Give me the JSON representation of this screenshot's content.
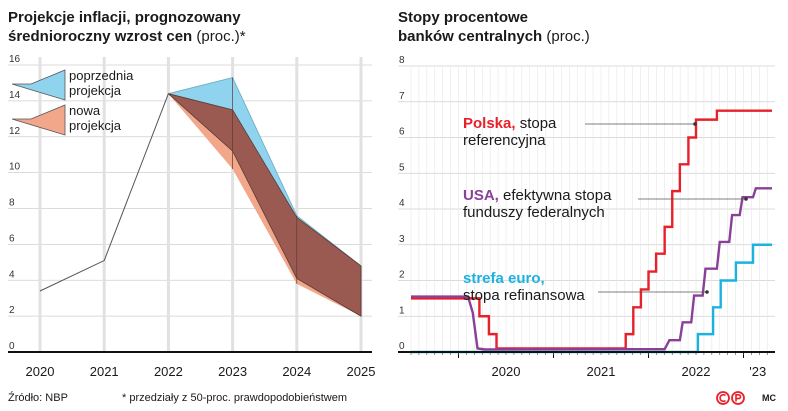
{
  "left_title_line1": "Projekcje inflacji, prognozowany",
  "left_title_line2_bold": "średnioroczny wzrost cen",
  "left_title_unit": "(proc.)*",
  "right_title_line1": "Stopy procentowe",
  "right_title_line2_bold": "banków centralnych",
  "right_title_unit": "(proc.)",
  "source": "Źródło: NBP",
  "footnote": "* przedziały z 50-proc. prawdopodobieństwem",
  "credit": "MC",
  "colors": {
    "prev": "#8fd3ee",
    "new_fill": "#9a5a52",
    "new_band": "#f2a78b",
    "history": "#555555",
    "pl": "#e8202a",
    "usa": "#8a3f98",
    "euro": "#1cb2e0"
  },
  "chart_data": [
    {
      "type": "area",
      "x_labels": [
        "2020",
        "2021",
        "2022",
        "2023",
        "2024",
        "2025"
      ],
      "y_ticks": [
        "0",
        "2",
        "4",
        "6",
        "8",
        "10",
        "12",
        "14",
        "16"
      ],
      "ylim": [
        0,
        16
      ],
      "grid": true,
      "legend": [
        {
          "label_line1": "poprzednia",
          "label_line2": "projekcja"
        },
        {
          "label_line1": "nowa",
          "label_line2": "projekcja"
        }
      ],
      "history": {
        "x": [
          2020,
          2021,
          2022
        ],
        "y": [
          3.4,
          5.1,
          14.4
        ]
      },
      "series": [
        {
          "name": "poprzednia projekcja",
          "x": [
            2022,
            2023,
            2024,
            2025
          ],
          "upper": [
            14.4,
            15.3,
            7.6,
            4.8
          ],
          "lower": [
            14.4,
            11.2,
            4.1,
            2.0
          ]
        },
        {
          "name": "nowa projekcja",
          "x": [
            2022,
            2023,
            2024,
            2025
          ],
          "upper": [
            14.4,
            13.5,
            7.5,
            4.8
          ],
          "lower": [
            14.4,
            10.2,
            3.8,
            2.0
          ]
        }
      ]
    },
    {
      "type": "line",
      "x_labels": [
        "2020",
        "2021",
        "2022",
        "'23"
      ],
      "y_ticks": [
        "0",
        "1",
        "2",
        "3",
        "4",
        "5",
        "6",
        "7",
        "8"
      ],
      "ylim": [
        0,
        8
      ],
      "grid": true,
      "labels": [
        {
          "bold": "Polska,",
          "line1_rest": " stopa",
          "line2": "referencyjna"
        },
        {
          "bold": "USA,",
          "line1_rest": " efektywna stopa",
          "line2": "funduszy federalnych"
        },
        {
          "bold": "strefa euro,",
          "line1_rest": "",
          "line2": "stopa refinansowa"
        }
      ],
      "series": [
        {
          "name": "Polska",
          "points": [
            [
              2019.5,
              1.5
            ],
            [
              2020.22,
              1.5
            ],
            [
              2020.22,
              1.0
            ],
            [
              2020.32,
              1.0
            ],
            [
              2020.32,
              0.5
            ],
            [
              2020.4,
              0.5
            ],
            [
              2020.4,
              0.1
            ],
            [
              2021.76,
              0.1
            ],
            [
              2021.76,
              0.5
            ],
            [
              2021.84,
              0.5
            ],
            [
              2021.84,
              1.25
            ],
            [
              2021.92,
              1.25
            ],
            [
              2021.92,
              1.75
            ],
            [
              2022.0,
              1.75
            ],
            [
              2022.0,
              2.25
            ],
            [
              2022.08,
              2.25
            ],
            [
              2022.08,
              2.75
            ],
            [
              2022.17,
              2.75
            ],
            [
              2022.17,
              3.5
            ],
            [
              2022.25,
              3.5
            ],
            [
              2022.25,
              4.5
            ],
            [
              2022.33,
              4.5
            ],
            [
              2022.33,
              5.25
            ],
            [
              2022.42,
              5.25
            ],
            [
              2022.42,
              6.0
            ],
            [
              2022.5,
              6.0
            ],
            [
              2022.5,
              6.5
            ],
            [
              2022.72,
              6.5
            ],
            [
              2022.72,
              6.75
            ],
            [
              2023.3,
              6.75
            ]
          ]
        },
        {
          "name": "USA",
          "points": [
            [
              2019.5,
              1.55
            ],
            [
              2020.1,
              1.55
            ],
            [
              2020.15,
              1.1
            ],
            [
              2020.2,
              0.1
            ],
            [
              2020.28,
              0.07
            ],
            [
              2022.17,
              0.08
            ],
            [
              2022.22,
              0.33
            ],
            [
              2022.33,
              0.33
            ],
            [
              2022.36,
              0.83
            ],
            [
              2022.45,
              0.83
            ],
            [
              2022.48,
              1.58
            ],
            [
              2022.57,
              1.58
            ],
            [
              2022.6,
              2.33
            ],
            [
              2022.72,
              2.33
            ],
            [
              2022.75,
              3.08
            ],
            [
              2022.85,
              3.08
            ],
            [
              2022.88,
              3.83
            ],
            [
              2022.96,
              3.83
            ],
            [
              2022.99,
              4.33
            ],
            [
              2023.1,
              4.33
            ],
            [
              2023.13,
              4.58
            ],
            [
              2023.3,
              4.58
            ]
          ]
        },
        {
          "name": "strefa euro",
          "points": [
            [
              2019.5,
              0.0
            ],
            [
              2022.52,
              0.0
            ],
            [
              2022.52,
              0.5
            ],
            [
              2022.68,
              0.5
            ],
            [
              2022.68,
              1.25
            ],
            [
              2022.76,
              1.25
            ],
            [
              2022.76,
              2.0
            ],
            [
              2022.92,
              2.0
            ],
            [
              2022.92,
              2.5
            ],
            [
              2023.1,
              2.5
            ],
            [
              2023.1,
              3.0
            ],
            [
              2023.3,
              3.0
            ]
          ]
        }
      ]
    }
  ]
}
